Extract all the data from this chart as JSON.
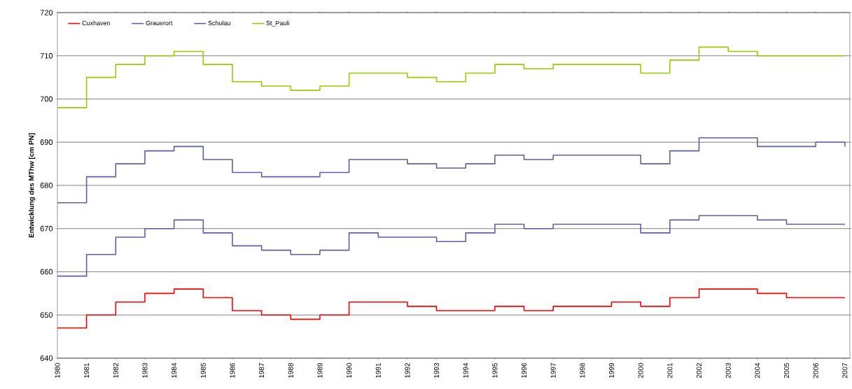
{
  "chart_data": {
    "type": "step",
    "ylabel": "Entwicklung des MThw [cm PN]",
    "x": [
      1980,
      1981,
      1982,
      1983,
      1984,
      1985,
      1986,
      1987,
      1988,
      1989,
      1990,
      1991,
      1992,
      1993,
      1994,
      1995,
      1996,
      1997,
      1998,
      1999,
      2000,
      2001,
      2002,
      2003,
      2004,
      2005,
      2006,
      2007
    ],
    "series": [
      {
        "name": "Cuxhaven",
        "color": "#ff0000",
        "values": [
          647,
          650,
          653,
          655,
          656,
          654,
          651,
          650,
          649,
          650,
          653,
          653,
          652,
          651,
          651,
          652,
          651,
          652,
          652,
          653,
          652,
          654,
          656,
          656,
          655,
          654,
          654,
          654
        ]
      },
      {
        "name": "Grauerort",
        "color": "#5f5f9f",
        "values": [
          659,
          664,
          668,
          670,
          672,
          669,
          666,
          665,
          664,
          665,
          669,
          668,
          668,
          667,
          669,
          671,
          670,
          671,
          671,
          671,
          669,
          672,
          673,
          673,
          672,
          671,
          671,
          671
        ]
      },
      {
        "name": "Schulau",
        "color": "#5f5f9f",
        "values": [
          676,
          682,
          685,
          688,
          689,
          686,
          683,
          682,
          682,
          683,
          686,
          686,
          685,
          684,
          685,
          687,
          686,
          687,
          687,
          687,
          685,
          688,
          691,
          691,
          689,
          689,
          690,
          689
        ]
      },
      {
        "name": "St_Pauli",
        "color": "#99cc00",
        "values": [
          698,
          705,
          708,
          710,
          711,
          708,
          704,
          703,
          702,
          703,
          706,
          706,
          705,
          704,
          706,
          708,
          707,
          708,
          708,
          708,
          706,
          709,
          712,
          711,
          710,
          710,
          710,
          710
        ]
      }
    ],
    "xlim": [
      1980,
      2007.17
    ],
    "ylim": [
      640,
      720
    ],
    "xticks": [
      1980,
      1981,
      1982,
      1983,
      1984,
      1985,
      1986,
      1987,
      1988,
      1989,
      1990,
      1991,
      1992,
      1993,
      1994,
      1995,
      1996,
      1997,
      1998,
      1999,
      2000,
      2001,
      2002,
      2003,
      2004,
      2005,
      2006,
      2007
    ],
    "yticks": [
      640,
      650,
      660,
      670,
      680,
      690,
      700,
      710,
      720
    ],
    "grid": "y",
    "legend": "top left",
    "marker": "none",
    "line_style": "solid"
  }
}
